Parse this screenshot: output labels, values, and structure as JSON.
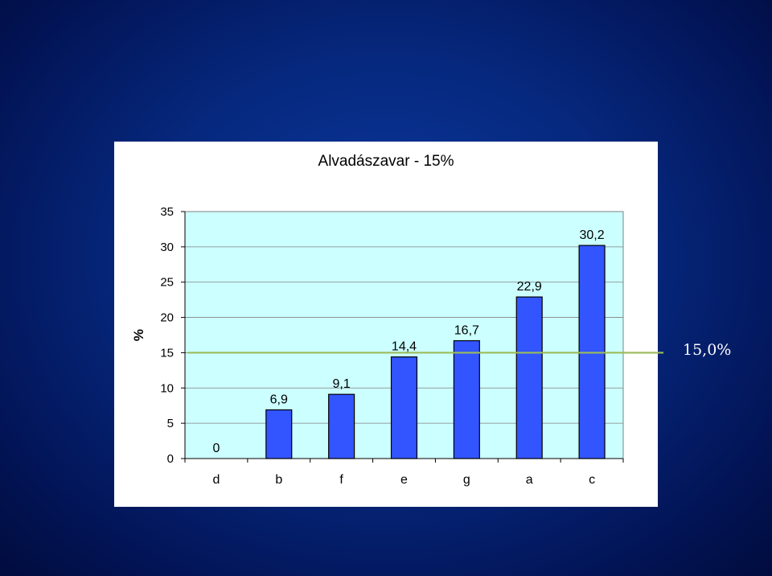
{
  "chart_data": {
    "type": "bar",
    "title": "Alvadászavar - 15%",
    "ylabel": "%",
    "xlabel": "",
    "categories": [
      "d",
      "b",
      "f",
      "e",
      "g",
      "a",
      "c"
    ],
    "values": [
      0,
      6.9,
      9.1,
      14.4,
      16.7,
      22.9,
      30.2
    ],
    "value_labels": [
      "0",
      "6,9",
      "9,1",
      "14,4",
      "16,7",
      "22,9",
      "30,2"
    ],
    "ylim": [
      0,
      35
    ],
    "yticks": [
      0,
      5,
      10,
      15,
      20,
      25,
      30,
      35
    ],
    "grid": true,
    "legend": "none",
    "reference_line": {
      "value": 15,
      "label": "15,0%",
      "color": "#9bbb59"
    },
    "colors": {
      "bar_fill": "#3355ff",
      "bar_stroke": "#000000",
      "plot_background": "#ccffff",
      "page_background": "#06287e"
    }
  }
}
